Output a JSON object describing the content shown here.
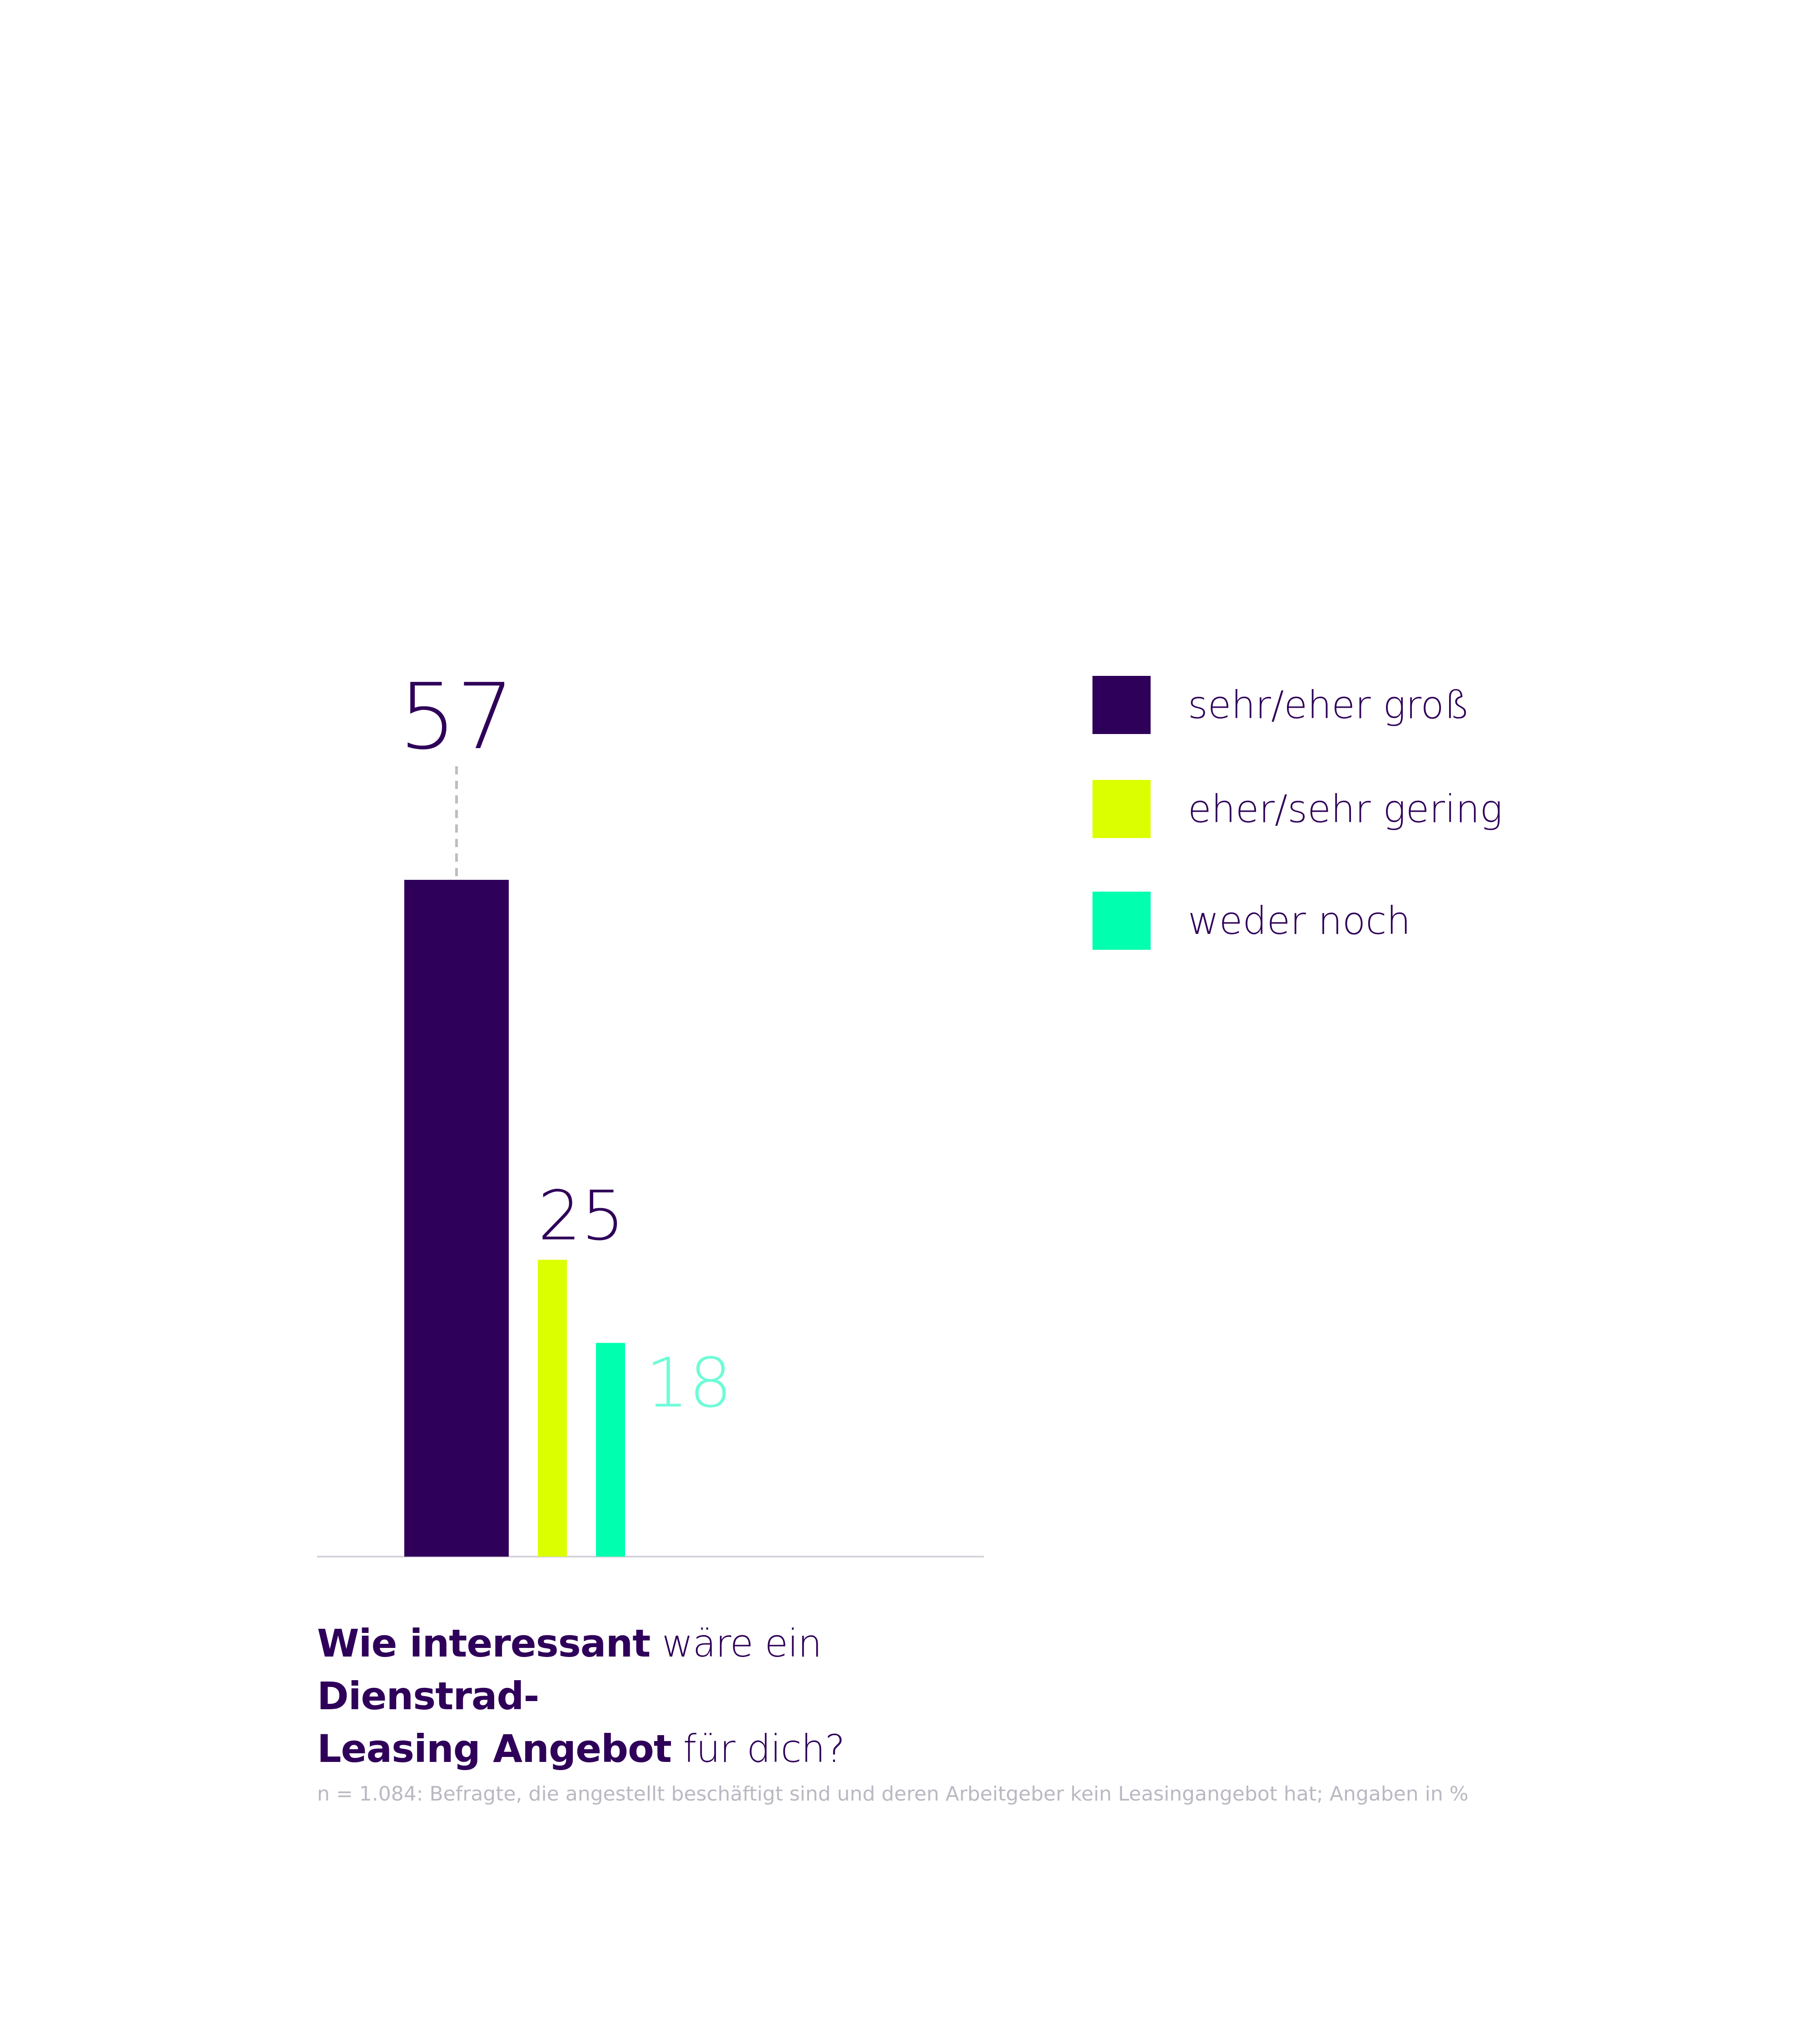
{
  "chart_data": {
    "type": "bar",
    "categories": [
      "sehr/eher groß",
      "eher/sehr gering",
      "weder noch"
    ],
    "values": [
      57,
      25,
      18
    ],
    "colors": [
      "#2f0059",
      "#dcff00",
      "#00ffaf"
    ],
    "value_label_colors": [
      "#2f0059",
      "#2f0059",
      "#6ffcd8"
    ],
    "ylim": [
      0,
      57
    ],
    "grid": false,
    "legend_position": "right",
    "legend": [
      {
        "label": "sehr/eher groß",
        "color": "#2f0059"
      },
      {
        "label": "eher/sehr gering",
        "color": "#dcff00"
      },
      {
        "label": "weder noch",
        "color": "#00ffaf"
      }
    ]
  },
  "question": {
    "part1": "Wie interessant",
    "part2": " wäre ein ",
    "part3": "Dienstrad-",
    "part4": "Leasing Angebot",
    "part5": " für dich?"
  },
  "footnote": "n = 1.084: Befragte, die angestellt beschäftigt sind und deren Arbeitgeber kein Leasingangebot hat; Angaben in %"
}
